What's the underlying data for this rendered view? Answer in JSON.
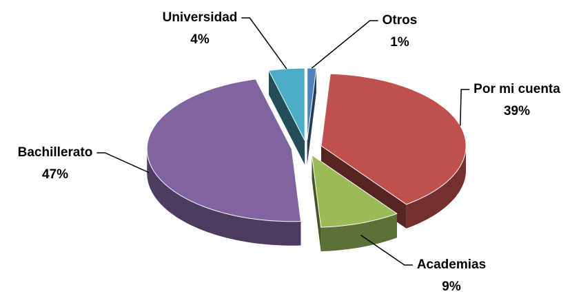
{
  "chart_data": {
    "type": "pie",
    "categories": [
      "Otros",
      "Por mi cuenta",
      "Academias",
      "Bachillerato",
      "Universidad"
    ],
    "values": [
      1,
      39,
      9,
      47,
      4
    ],
    "value_labels": [
      "1%",
      "39%",
      "9%",
      "47%",
      "4%"
    ],
    "colors": [
      "#4f81bd",
      "#c0504d",
      "#9bbb59",
      "#8064a2",
      "#4bacc6"
    ]
  }
}
